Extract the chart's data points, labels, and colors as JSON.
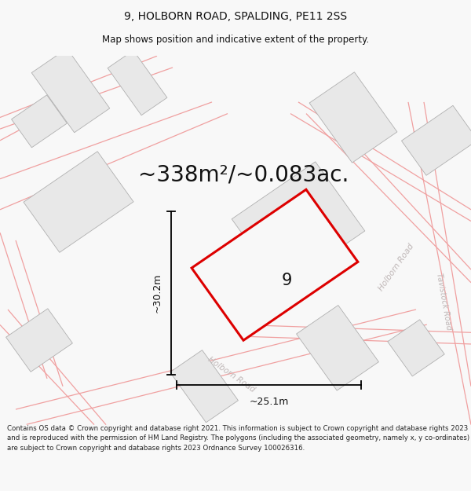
{
  "title": "9, HOLBORN ROAD, SPALDING, PE11 2SS",
  "subtitle": "Map shows position and indicative extent of the property.",
  "area_text": "~338m²/~0.083ac.",
  "label_number": "9",
  "dim_width": "~25.1m",
  "dim_height": "~30.2m",
  "footer": "Contains OS data © Crown copyright and database right 2021. This information is subject to Crown copyright and database rights 2023 and is reproduced with the permission of HM Land Registry. The polygons (including the associated geometry, namely x, y co-ordinates) are subject to Crown copyright and database rights 2023 Ordnance Survey 100026316.",
  "bg_color": "#f8f8f8",
  "map_bg": "#ffffff",
  "building_fill": "#e8e8e8",
  "building_edge": "#b0b0b0",
  "pink_line": "#f0a0a0",
  "red_outline": "#dd0000",
  "plot_fill": "#f8f8f8",
  "text_color": "#111111",
  "road_label_color": "#bbbbbb",
  "title_fontsize": 10,
  "subtitle_fontsize": 8.5,
  "area_fontsize": 20,
  "label_fontsize": 15,
  "dim_fontsize": 9,
  "footer_fontsize": 6.2
}
